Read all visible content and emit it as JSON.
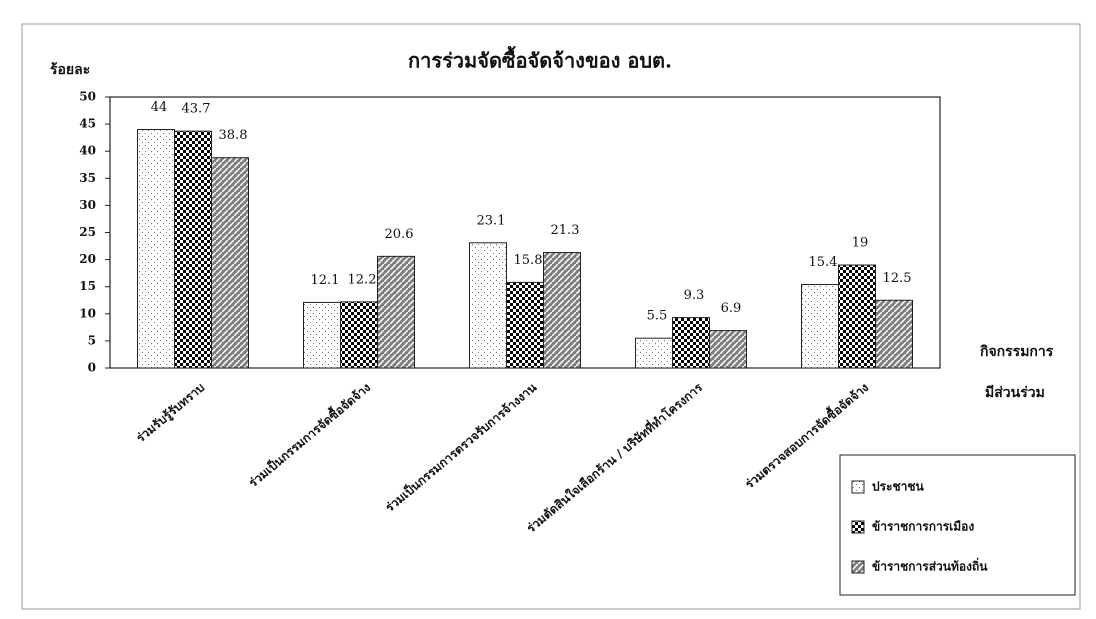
{
  "chart_data": {
    "type": "bar",
    "title": "การร่วมจัดซื้อจัดจ้างของ อบต.",
    "y_label": "ร้อยละ",
    "x_label": [
      "กิจกรรมการ",
      "มีส่วนร่วม"
    ],
    "categories": [
      "ร่วมรับรู้รับทราบ",
      "ร่วมเป็นกรรมการจัดซื้อจัดจ้าง",
      "ร่วมเป็นกรรมการตรวจรับการจ้างงาน",
      "ร่วมตัดสินใจเลือกร้าน / บริษัทที่ทำโครงการ",
      "ร่วมตรวจสอบการจัดซื้อจัดจ้าง"
    ],
    "series": [
      {
        "name": "ประชาชน",
        "color": "#ffffff",
        "values": [
          44,
          12.1,
          23.1,
          5.5,
          15.4
        ]
      },
      {
        "name": "ข้าราชการการเมือง",
        "color": "#000000",
        "values": [
          43.7,
          12.2,
          15.8,
          9.3,
          19
        ]
      },
      {
        "name": "ข้าราชการส่วนท้องถิ่น",
        "color": "#808080",
        "values": [
          38.8,
          20.6,
          21.3,
          6.9,
          12.5
        ]
      }
    ],
    "ylim": [
      0,
      50
    ],
    "yticks": [
      0,
      5,
      10,
      15,
      20,
      25,
      30,
      35,
      40,
      45,
      50
    ],
    "legend": "bottom-right"
  }
}
